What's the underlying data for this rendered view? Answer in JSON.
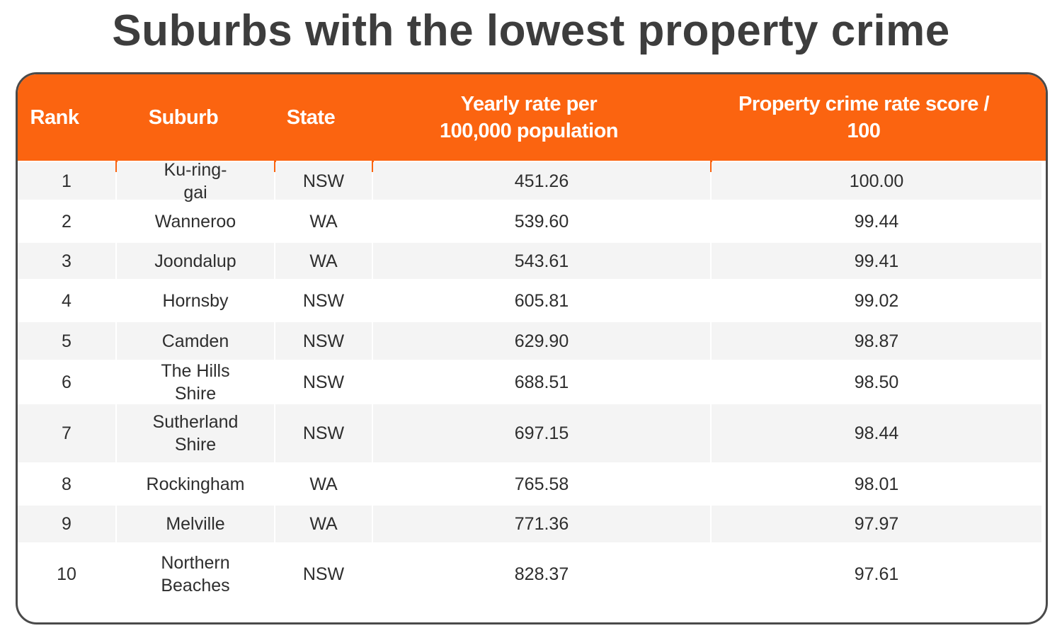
{
  "title": "Suburbs with the lowest property crime",
  "accent_color": "#fb6410",
  "table": {
    "headers": [
      "Rank",
      "Suburb",
      "State",
      "Yearly rate per 100,000 population",
      "Property crime rate score / 100"
    ],
    "rows": [
      [
        "1",
        "Ku-ring-gai",
        "NSW",
        "451.26",
        "100.00"
      ],
      [
        "2",
        "Wanneroo",
        "WA",
        "539.60",
        "99.44"
      ],
      [
        "3",
        "Joondalup",
        "WA",
        "543.61",
        "99.41"
      ],
      [
        "4",
        "Hornsby",
        "NSW",
        "605.81",
        "99.02"
      ],
      [
        "5",
        "Camden",
        "NSW",
        "629.90",
        "98.87"
      ],
      [
        "6",
        "The Hills Shire",
        "NSW",
        "688.51",
        "98.50"
      ],
      [
        "7",
        "Sutherland Shire",
        "NSW",
        "697.15",
        "98.44"
      ],
      [
        "8",
        "Rockingham",
        "WA",
        "765.58",
        "98.01"
      ],
      [
        "9",
        "Melville",
        "WA",
        "771.36",
        "97.97"
      ],
      [
        "10",
        "Northern Beaches",
        "NSW",
        "828.37",
        "97.61"
      ]
    ]
  }
}
